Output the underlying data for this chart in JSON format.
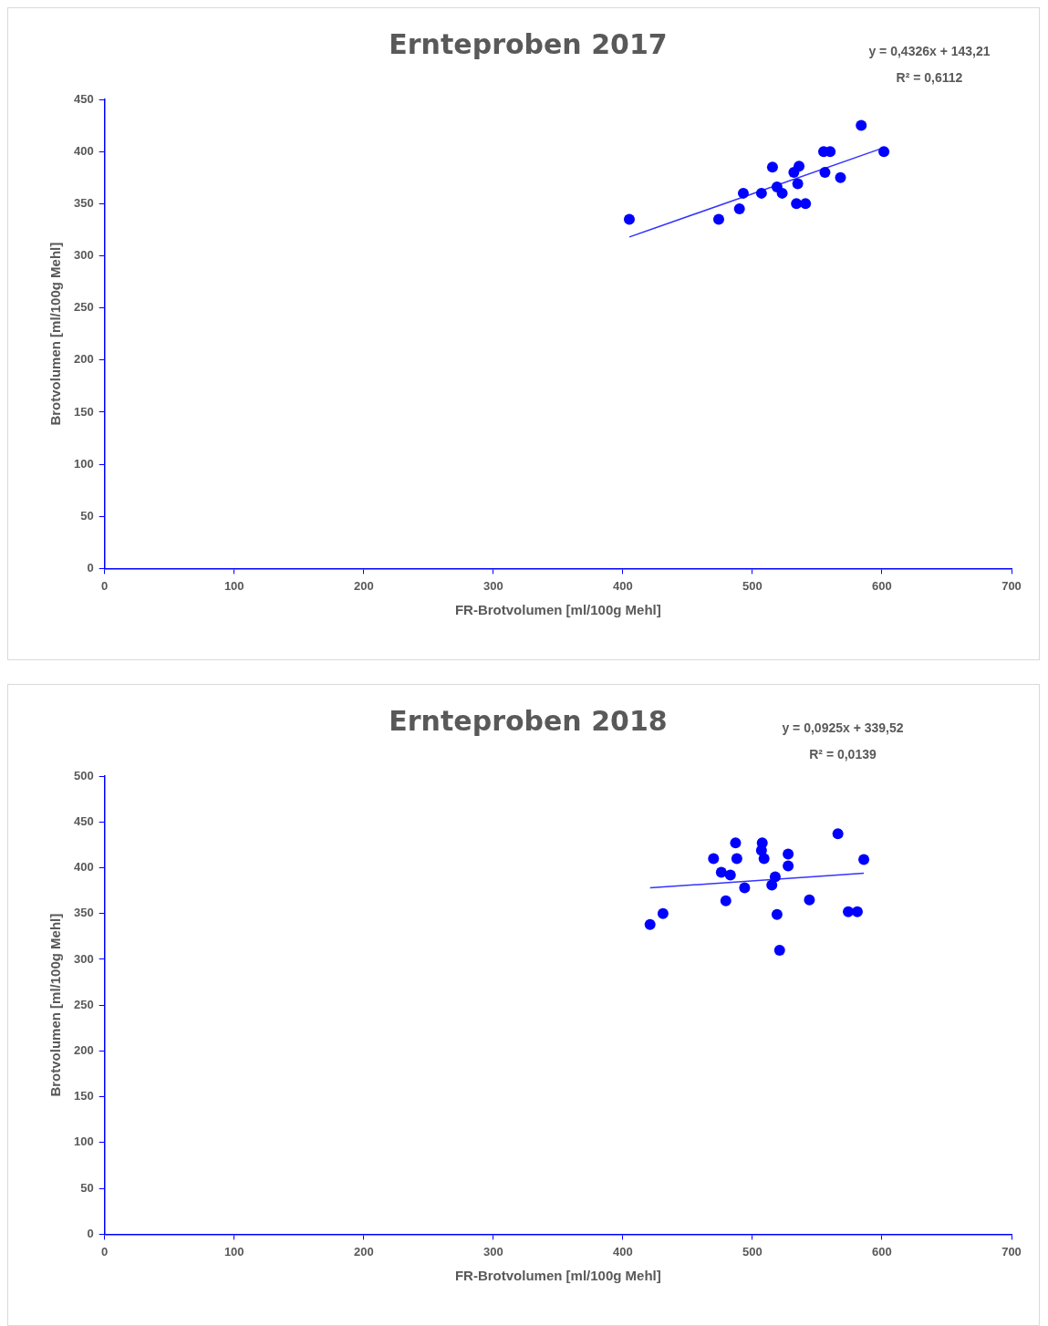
{
  "chart_data": [
    {
      "type": "scatter",
      "title": "Ernteproben 2017",
      "xlabel": "FR-Brotvolumen [ml/100g Mehl]",
      "ylabel": "Brotvolumen [ml/100g Mehl]",
      "annotations": [
        "y = 0,4326x + 143,21",
        "R² = 0,6112"
      ],
      "xlim": [
        0,
        700
      ],
      "xticks": [
        0,
        100,
        200,
        300,
        400,
        500,
        600,
        700
      ],
      "ylim": [
        0,
        450
      ],
      "yticks": [
        0,
        50,
        100,
        150,
        200,
        250,
        300,
        350,
        400,
        450
      ],
      "grid": false,
      "legend": false,
      "series": [
        {
          "type": "scatter",
          "marker": "circle",
          "color": "#0000ff",
          "x": [
            405,
            474,
            490,
            493,
            507,
            515.5,
            519,
            523,
            532,
            536,
            535,
            534,
            541,
            555,
            560,
            556,
            568,
            584,
            601.5
          ],
          "values": [
            335,
            335,
            345,
            360,
            360,
            385,
            366,
            360,
            380,
            386,
            369,
            350,
            350,
            400,
            400,
            380,
            375,
            425,
            400
          ]
        },
        {
          "type": "line",
          "color": "#3333ff",
          "x": [
            405,
            602
          ],
          "values": [
            318,
            404
          ]
        }
      ]
    },
    {
      "type": "scatter",
      "title": "Ernteproben 2018",
      "xlabel": "FR-Brotvolumen [ml/100g Mehl]",
      "ylabel": "Brotvolumen [ml/100g Mehl]",
      "annotations": [
        "y = 0,0925x + 339,52",
        "R² = 0,0139"
      ],
      "xlim": [
        0,
        700
      ],
      "xticks": [
        0,
        100,
        200,
        300,
        400,
        500,
        600,
        700
      ],
      "ylim": [
        0,
        500
      ],
      "yticks": [
        0,
        50,
        100,
        150,
        200,
        250,
        300,
        350,
        400,
        450,
        500
      ],
      "grid": false,
      "legend": false,
      "series": [
        {
          "type": "scatter",
          "marker": "circle",
          "color": "#0000ff",
          "x": [
            421,
            431,
            470,
            476,
            479.5,
            483,
            487,
            488,
            494,
            507.6,
            507,
            509,
            517.6,
            515,
            519,
            521,
            527.6,
            527.6,
            544,
            566,
            574,
            581,
            586
          ],
          "values": [
            338,
            350,
            410,
            395,
            364,
            392,
            427,
            410,
            378,
            427,
            419,
            410,
            390,
            381,
            349,
            310,
            415,
            402,
            365,
            437,
            352,
            352,
            409
          ]
        },
        {
          "type": "line",
          "color": "#3333ff",
          "x": [
            421,
            586
          ],
          "values": [
            378,
            394
          ]
        }
      ]
    }
  ]
}
